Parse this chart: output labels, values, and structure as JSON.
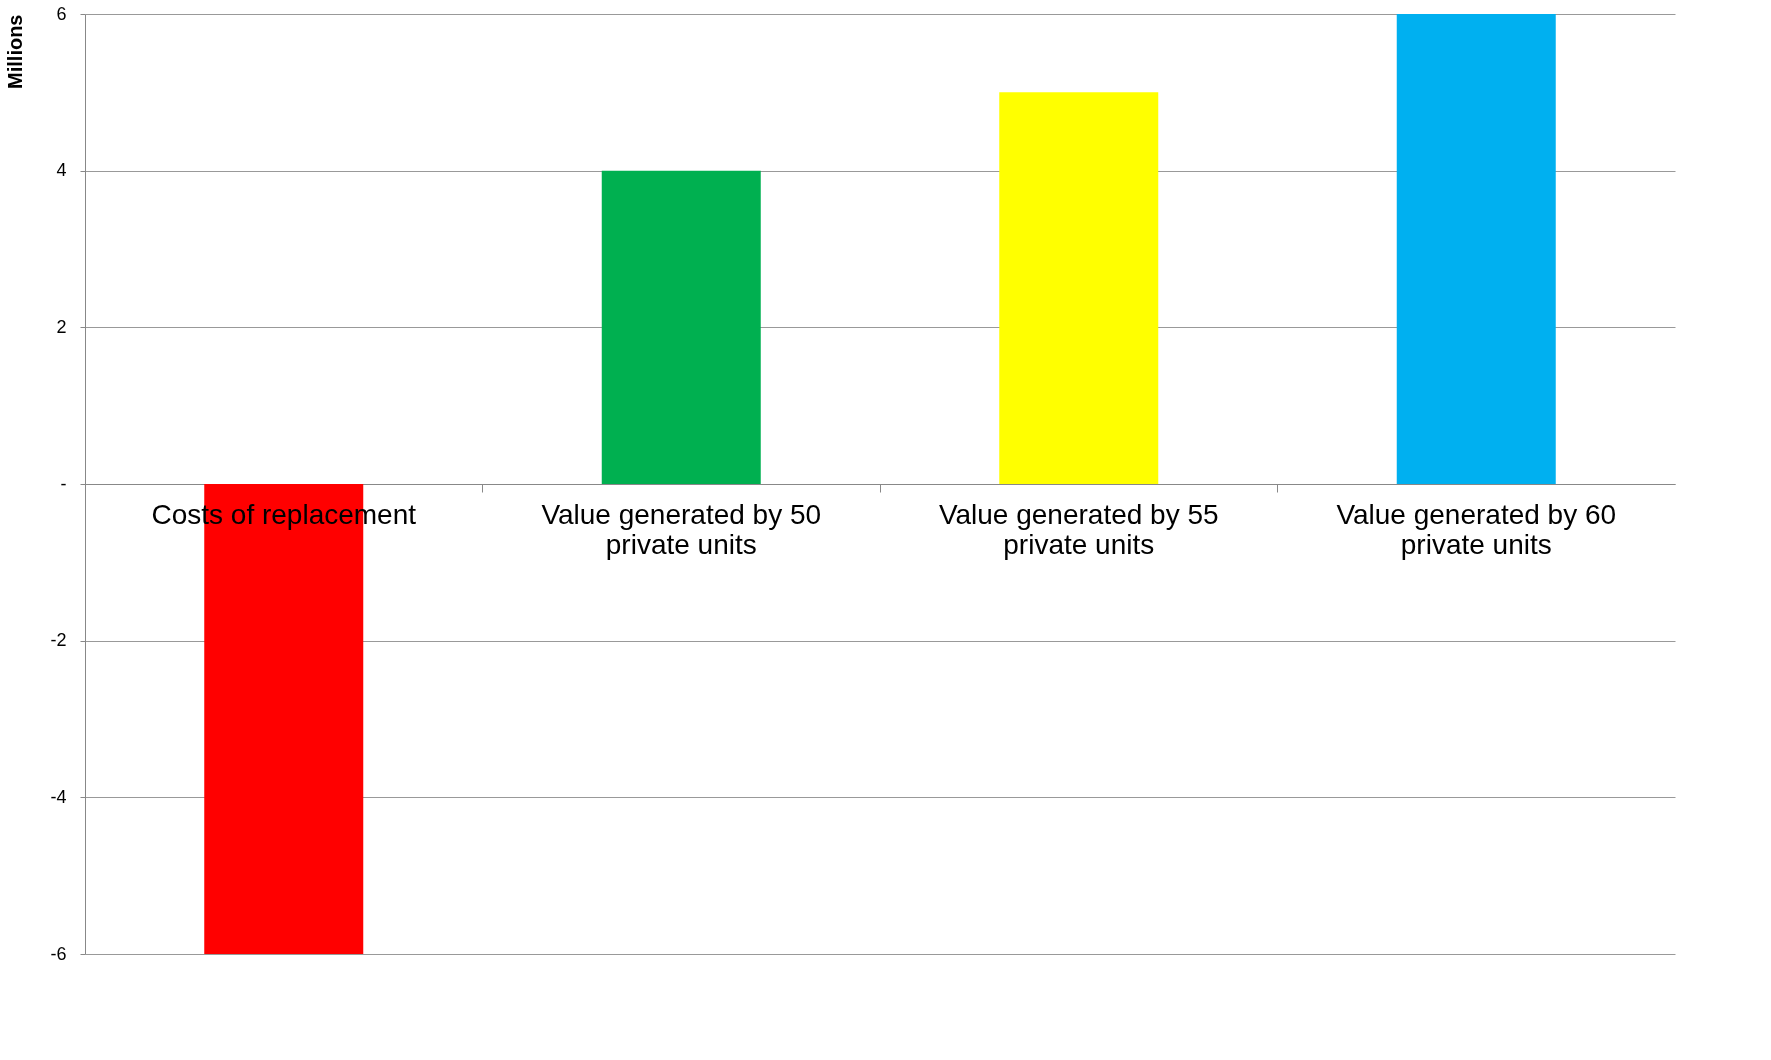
{
  "chart_data": {
    "type": "bar",
    "ylabel": "Millions",
    "categories": [
      "Costs of replacement",
      "Value generated by 50 private units",
      "Value generated by 55 private units",
      "Value generated by 60 private units"
    ],
    "values": [
      -6,
      4,
      5,
      6
    ],
    "colors": [
      "#ff0000",
      "#00b050",
      "#ffff00",
      "#00b0f0"
    ],
    "ylim": [
      -6,
      6
    ],
    "yticks": [
      -6,
      -4,
      -2,
      {
        "value": 0,
        "label": "-"
      },
      2,
      4,
      6
    ],
    "grid": "y"
  }
}
